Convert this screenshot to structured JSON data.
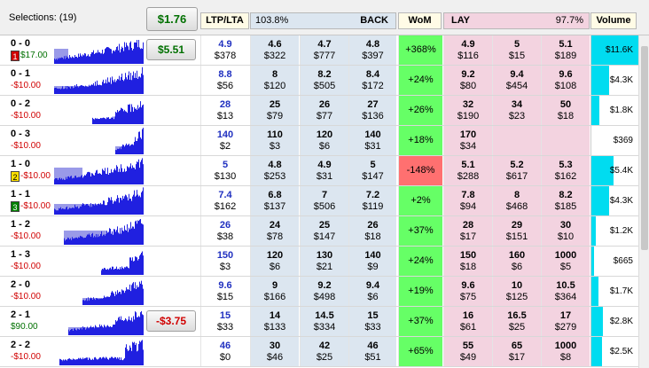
{
  "header": {
    "selections": "Selections: (19)",
    "total_btn": "$1.76",
    "ltp_lta": "LTP/LTA",
    "back_pct": "103.8%",
    "back": "BACK",
    "wom": "WoM",
    "lay": "LAY",
    "lay_pct": "97.7%",
    "volume": "Volume"
  },
  "colors": {
    "back_bg": "#dce6f0",
    "lay_bg": "#f3d3e0",
    "wom_pos": "#66ff66",
    "wom_neg": "#ff7070",
    "vol_bar": "#00dcf0",
    "hist": "#2020e0"
  },
  "rows": [
    {
      "name": "0 - 0",
      "pl": "$17.00",
      "pos": true,
      "tag": "1",
      "tagc": "#d00000",
      "btn": "$5.51",
      "btnneg": false,
      "ltp": "4.9",
      "lta": "$378",
      "b": [
        [
          "4.6",
          "$322"
        ],
        [
          "4.7",
          "$777"
        ],
        [
          "4.8",
          "$397"
        ]
      ],
      "wom": "+368%",
      "womneg": false,
      "l": [
        [
          "4.9",
          "$116"
        ],
        [
          "5",
          "$15"
        ],
        [
          "5.1",
          "$189"
        ]
      ],
      "vol": "$11.6K",
      "vf": 1.0,
      "h": [
        0.05,
        0.2,
        0.55
      ]
    },
    {
      "name": "0 - 1",
      "pl": "-$10.00",
      "pos": false,
      "tag": "",
      "ltp": "8.8",
      "lta": "$56",
      "b": [
        [
          "8",
          "$120"
        ],
        [
          "8.2",
          "$505"
        ],
        [
          "8.4",
          "$172"
        ]
      ],
      "wom": "+24%",
      "l": [
        [
          "9.2",
          "$80"
        ],
        [
          "9.4",
          "$454"
        ],
        [
          "9.6",
          "$108"
        ]
      ],
      "vol": "$4.3K",
      "vf": 0.37,
      "h": [
        0.05,
        0.45,
        0.3
      ]
    },
    {
      "name": "0 - 2",
      "pl": "-$10.00",
      "pos": false,
      "ltp": "28",
      "lta": "$13",
      "b": [
        [
          "25",
          "$79"
        ],
        [
          "26",
          "$77"
        ],
        [
          "27",
          "$136"
        ]
      ],
      "wom": "+26%",
      "l": [
        [
          "32",
          "$190"
        ],
        [
          "34",
          "$23"
        ],
        [
          "50",
          "$18"
        ]
      ],
      "vol": "$1.8K",
      "vf": 0.16,
      "h": [
        0.45,
        0.7,
        0.2
      ]
    },
    {
      "name": "0 - 3",
      "pl": "-$10.00",
      "pos": false,
      "ltp": "140",
      "lta": "$2",
      "b": [
        [
          "110",
          "$3"
        ],
        [
          "120",
          "$6"
        ],
        [
          "140",
          "$31"
        ]
      ],
      "wom": "+18%",
      "l": [
        [
          "170",
          "$34"
        ],
        [
          "",
          ""
        ],
        [
          "",
          ""
        ]
      ],
      "vol": "$369",
      "vf": 0.0,
      "h": [
        0.7,
        0.9,
        0.3
      ]
    },
    {
      "name": "1 - 0",
      "pl": "-$10.00",
      "pos": false,
      "tag": "2",
      "tagc": "#ffe000",
      "ltp": "5",
      "lta": "$130",
      "b": [
        [
          "4.8",
          "$253"
        ],
        [
          "4.9",
          "$31"
        ],
        [
          "5",
          "$147"
        ]
      ],
      "wom": "-148%",
      "womneg": true,
      "l": [
        [
          "5.1",
          "$288"
        ],
        [
          "5.2",
          "$617"
        ],
        [
          "5.3",
          "$162"
        ]
      ],
      "vol": "$5.4K",
      "vf": 0.46,
      "h": [
        0.05,
        0.35,
        0.6
      ]
    },
    {
      "name": "1 - 1",
      "pl": "-$10.00",
      "pos": false,
      "tag": "3",
      "tagc": "#008000",
      "ltp": "7.4",
      "lta": "$162",
      "b": [
        [
          "6.8",
          "$137"
        ],
        [
          "7",
          "$506"
        ],
        [
          "7.2",
          "$119"
        ]
      ],
      "wom": "+2%",
      "l": [
        [
          "7.8",
          "$94"
        ],
        [
          "8",
          "$468"
        ],
        [
          "8.2",
          "$185"
        ]
      ],
      "vol": "$4.3K",
      "vf": 0.37,
      "h": [
        0.05,
        0.55,
        0.4
      ]
    },
    {
      "name": "1 - 2",
      "pl": "-$10.00",
      "pos": false,
      "ltp": "26",
      "lta": "$38",
      "b": [
        [
          "24",
          "$78"
        ],
        [
          "25",
          "$147"
        ],
        [
          "26",
          "$18"
        ]
      ],
      "wom": "+37%",
      "l": [
        [
          "28",
          "$17"
        ],
        [
          "29",
          "$151"
        ],
        [
          "30",
          "$10"
        ]
      ],
      "vol": "$1.2K",
      "vf": 0.1,
      "h": [
        0.15,
        0.6,
        0.5
      ]
    },
    {
      "name": "1 - 3",
      "pl": "-$10.00",
      "pos": false,
      "ltp": "150",
      "lta": "$3",
      "b": [
        [
          "120",
          "$6"
        ],
        [
          "130",
          "$21"
        ],
        [
          "140",
          "$9"
        ]
      ],
      "wom": "+24%",
      "l": [
        [
          "150",
          "$18"
        ],
        [
          "160",
          "$6"
        ],
        [
          "1000",
          "$5"
        ]
      ],
      "vol": "$665",
      "vf": 0.05,
      "h": [
        0.55,
        0.85,
        0.2
      ]
    },
    {
      "name": "2 - 0",
      "pl": "-$10.00",
      "pos": false,
      "ltp": "9.6",
      "lta": "$15",
      "b": [
        [
          "9",
          "$166"
        ],
        [
          "9.2",
          "$498"
        ],
        [
          "9.4",
          "$6"
        ]
      ],
      "wom": "+19%",
      "l": [
        [
          "9.6",
          "$75"
        ],
        [
          "10",
          "$125"
        ],
        [
          "10.5",
          "$364"
        ]
      ],
      "vol": "$1.7K",
      "vf": 0.15,
      "h": [
        0.35,
        0.65,
        0.25
      ]
    },
    {
      "name": "2 - 1",
      "pl": "$90.00",
      "pos": true,
      "btn": "-$3.75",
      "btnneg": true,
      "ltp": "15",
      "lta": "$33",
      "b": [
        [
          "14",
          "$133"
        ],
        [
          "14.5",
          "$334"
        ],
        [
          "15",
          "$33"
        ]
      ],
      "wom": "+37%",
      "l": [
        [
          "16",
          "$61"
        ],
        [
          "16.5",
          "$25"
        ],
        [
          "17",
          "$279"
        ]
      ],
      "vol": "$2.8K",
      "vf": 0.24,
      "h": [
        0.2,
        0.7,
        0.3
      ]
    },
    {
      "name": "2 - 2",
      "pl": "-$10.00",
      "pos": false,
      "ltp": "46",
      "lta": "$0",
      "b": [
        [
          "30",
          "$46"
        ],
        [
          "42",
          "$25"
        ],
        [
          "46",
          "$51"
        ]
      ],
      "wom": "+65%",
      "l": [
        [
          "55",
          "$49"
        ],
        [
          "65",
          "$17"
        ],
        [
          "1000",
          "$8"
        ]
      ],
      "vol": "$2.5K",
      "vf": 0.22,
      "h": [
        0.1,
        0.8,
        0.2
      ]
    }
  ]
}
